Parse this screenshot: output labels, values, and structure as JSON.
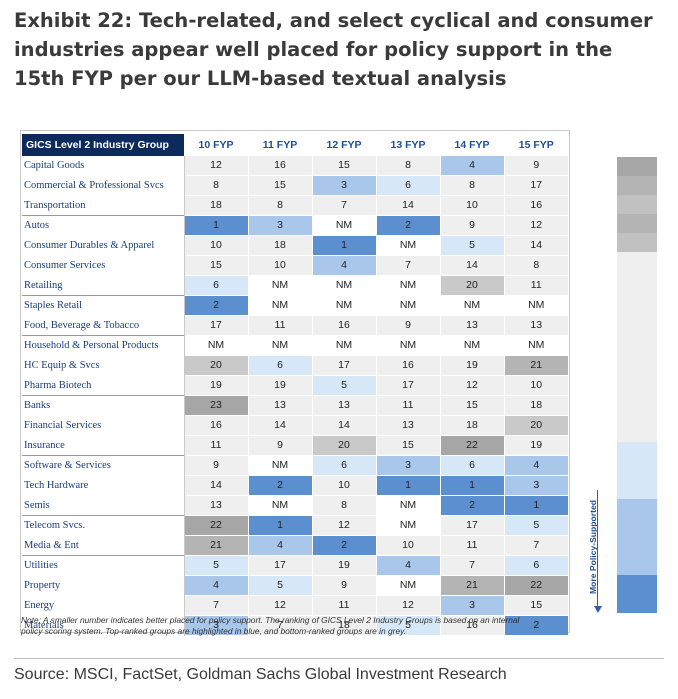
{
  "title_lines": [
    "Exhibit 22: Tech-related, and select cyclical and consumer",
    "industries appear well placed for policy support in the",
    "15th FYP per our LLM-based textual analysis"
  ],
  "chart_data": {
    "type": "table",
    "title": "Exhibit 22: Tech-related, and select cyclical and consumer industries appear well placed for policy support in the 15th FYP per our LLM-based textual analysis",
    "row_header": "GICS Level 2 Industry Group",
    "columns": [
      "10 FYP",
      "11 FYP",
      "12 FYP",
      "13 FYP",
      "14 FYP",
      "15 FYP"
    ],
    "rows": [
      {
        "name": "Capital Goods",
        "values": [
          "12",
          "16",
          "15",
          "8",
          "4",
          "9"
        ]
      },
      {
        "name": "Commercial & Professional Svcs",
        "values": [
          "8",
          "15",
          "3",
          "6",
          "8",
          "17"
        ]
      },
      {
        "name": "Transportation",
        "values": [
          "18",
          "8",
          "7",
          "14",
          "10",
          "16"
        ]
      },
      {
        "name": "Autos",
        "values": [
          "1",
          "3",
          "NM",
          "2",
          "9",
          "12"
        ]
      },
      {
        "name": "Consumer Durables & Apparel",
        "values": [
          "10",
          "18",
          "1",
          "NM",
          "5",
          "14"
        ]
      },
      {
        "name": "Consumer Services",
        "values": [
          "15",
          "10",
          "4",
          "7",
          "14",
          "8"
        ]
      },
      {
        "name": "Retailing",
        "values": [
          "6",
          "NM",
          "NM",
          "NM",
          "20",
          "11"
        ]
      },
      {
        "name": "Staples Retail",
        "values": [
          "2",
          "NM",
          "NM",
          "NM",
          "NM",
          "NM"
        ]
      },
      {
        "name": "Food, Beverage & Tobacco",
        "values": [
          "17",
          "11",
          "16",
          "9",
          "13",
          "13"
        ]
      },
      {
        "name": "Household & Personal Products",
        "values": [
          "NM",
          "NM",
          "NM",
          "NM",
          "NM",
          "NM"
        ]
      },
      {
        "name": "HC Equip & Svcs",
        "values": [
          "20",
          "6",
          "17",
          "16",
          "19",
          "21"
        ]
      },
      {
        "name": "Pharma Biotech",
        "values": [
          "19",
          "19",
          "5",
          "17",
          "12",
          "10"
        ]
      },
      {
        "name": "Banks",
        "values": [
          "23",
          "13",
          "13",
          "11",
          "15",
          "18"
        ]
      },
      {
        "name": "Financial Services",
        "values": [
          "16",
          "14",
          "14",
          "13",
          "18",
          "20"
        ]
      },
      {
        "name": "Insurance",
        "values": [
          "11",
          "9",
          "20",
          "15",
          "22",
          "19"
        ]
      },
      {
        "name": "Software & Services",
        "values": [
          "9",
          "NM",
          "6",
          "3",
          "6",
          "4"
        ]
      },
      {
        "name": "Tech Hardware",
        "values": [
          "14",
          "2",
          "10",
          "1",
          "1",
          "3"
        ]
      },
      {
        "name": "Semis",
        "values": [
          "13",
          "NM",
          "8",
          "NM",
          "2",
          "1"
        ]
      },
      {
        "name": "Telecom Svcs.",
        "values": [
          "22",
          "1",
          "12",
          "NM",
          "17",
          "5"
        ]
      },
      {
        "name": "Media & Ent",
        "values": [
          "21",
          "4",
          "2",
          "10",
          "11",
          "7"
        ]
      },
      {
        "name": "Utilities",
        "values": [
          "5",
          "17",
          "19",
          "4",
          "7",
          "6"
        ]
      },
      {
        "name": "Property",
        "values": [
          "4",
          "5",
          "9",
          "NM",
          "21",
          "22"
        ]
      },
      {
        "name": "Energy",
        "values": [
          "7",
          "12",
          "11",
          "12",
          "3",
          "15"
        ]
      },
      {
        "name": "Materials",
        "values": [
          "3",
          "7",
          "18",
          "5",
          "16",
          "2"
        ]
      }
    ],
    "group_first_rows": [
      0,
      3,
      7,
      9,
      12,
      15,
      18,
      20
    ],
    "color_scale": {
      "nm": "#ffffff",
      "best": [
        "#5b8fcf",
        "#a8c7ea",
        "#d6e7f8"
      ],
      "mid": "#efefef",
      "worst": [
        "#c9c9c9",
        "#b4b4b4",
        "#a6a6a6"
      ]
    },
    "legend": {
      "label": "More Policy-Supported",
      "colors": [
        "#a6a6a6",
        "#b4b4b4",
        "#c1c1c1",
        "#b4b4b4",
        "#c1c1c1",
        "#efefef",
        "#efefef",
        "#efefef",
        "#efefef",
        "#efefef",
        "#efefef",
        "#efefef",
        "#efefef",
        "#efefef",
        "#efefef",
        "#d6e7f8",
        "#d6e7f8",
        "#d6e7f8",
        "#a8c7ea",
        "#a8c7ea",
        "#a8c7ea",
        "#a8c7ea",
        "#5b8fcf",
        "#5b8fcf"
      ]
    }
  },
  "note_lines": [
    "Note: A smaller number indicates better placed for policy support. The ranking of GICS Level 2 Industry Groups is based on an internal",
    "policy scoring system. Top-ranked groups are highlighted in blue, and bottom-ranked groups are in grey."
  ],
  "source": "Source: MSCI, FactSet, Goldman Sachs Global Investment Research"
}
